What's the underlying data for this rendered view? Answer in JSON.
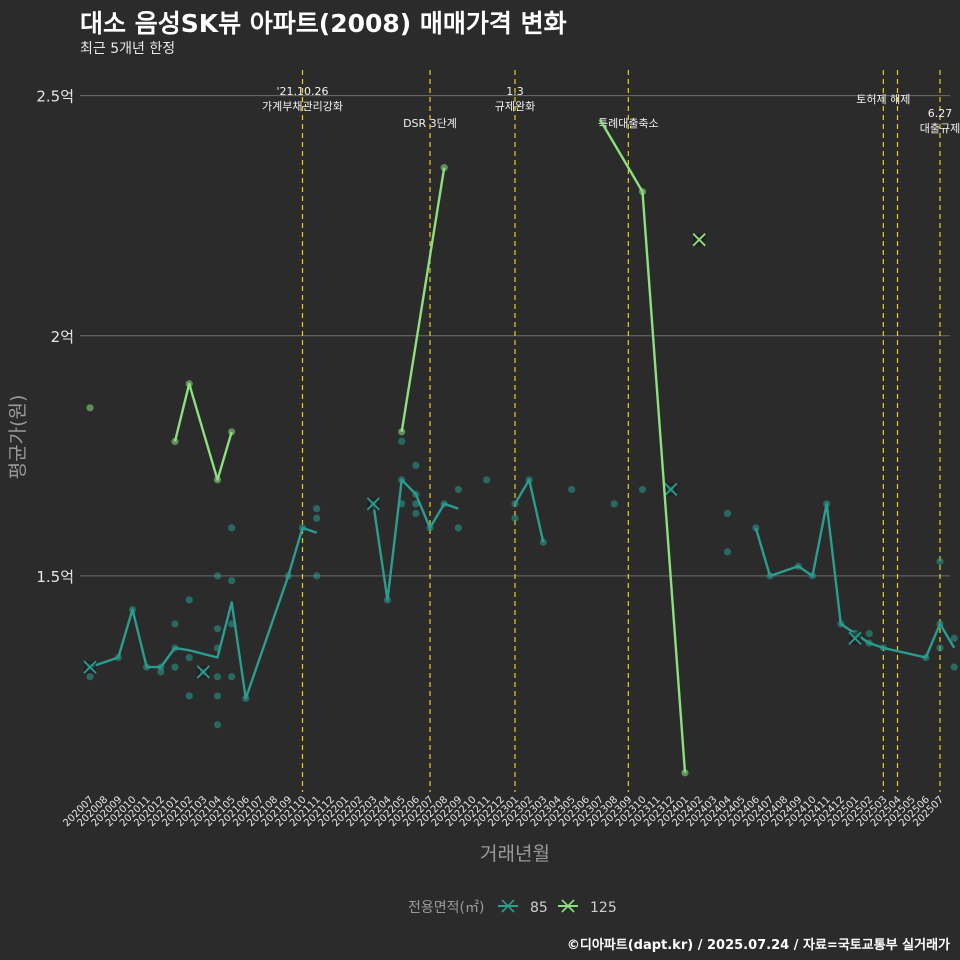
{
  "title": "대소 음성SK뷰 아파트(2008) 매매가격 변화",
  "subtitle": "최근 5개년 한정",
  "caption": "©디아파트(dapt.kr) / 2025.07.24 / 자료=국토교통부 실거래가",
  "colors": {
    "s85": "#2a9d8f",
    "s125": "#8de07e",
    "event": "#e6d019",
    "bg": "#2b2b2b",
    "grid": "#6e6e6e"
  },
  "chart_data": {
    "type": "line",
    "xlabel": "거래년월",
    "ylabel": "평균가(원)",
    "categories": [
      "202007",
      "202008",
      "202009",
      "202010",
      "202011",
      "202012",
      "202101",
      "202102",
      "202103",
      "202104",
      "202105",
      "202106",
      "202107",
      "202108",
      "202109",
      "202110",
      "202111",
      "202112",
      "202201",
      "202202",
      "202203",
      "202204",
      "202205",
      "202206",
      "202207",
      "202208",
      "202209",
      "202210",
      "202211",
      "202212",
      "202301",
      "202302",
      "202303",
      "202304",
      "202305",
      "202306",
      "202307",
      "202308",
      "202309",
      "202310",
      "202311",
      "202312",
      "202401",
      "202402",
      "202403",
      "202404",
      "202405",
      "202406",
      "202407",
      "202408",
      "202409",
      "202410",
      "202411",
      "202412",
      "202501",
      "202502",
      "202503",
      "202504",
      "202505",
      "202506",
      "202507"
    ],
    "yticks": [
      {
        "value": 1.5,
        "label": "1.5억"
      },
      {
        "value": 2.0,
        "label": "2억"
      },
      {
        "value": 2.5,
        "label": "2.5억"
      }
    ],
    "ylim": [
      1.05,
      2.57
    ],
    "legend": {
      "title": "전용면적(㎡)",
      "position": "bottom",
      "items": [
        "85",
        "125"
      ]
    },
    "series": [
      {
        "name": "85",
        "line": [
          [
            1,
            1.31
          ],
          [
            3,
            1.33
          ],
          [
            4,
            1.43
          ],
          [
            5,
            1.31
          ],
          [
            6,
            1.31
          ],
          [
            7,
            1.35
          ],
          [
            8,
            1.345
          ],
          [
            10,
            1.33
          ],
          [
            11,
            1.445
          ],
          [
            12,
            1.245
          ],
          [
            15,
            1.5
          ],
          [
            16,
            1.6
          ],
          [
            17,
            1.59
          ],
          [
            21,
            1.65
          ],
          [
            22,
            1.45
          ],
          [
            23,
            1.7
          ],
          [
            24,
            1.67
          ],
          [
            25,
            1.6
          ],
          [
            26,
            1.65
          ],
          [
            27,
            1.64
          ],
          [
            31,
            1.65
          ],
          [
            32,
            1.7
          ],
          [
            33,
            1.57
          ],
          [
            48,
            1.6
          ],
          [
            49,
            1.5
          ],
          [
            51,
            1.52
          ],
          [
            52,
            1.5
          ],
          [
            53,
            1.65
          ],
          [
            54,
            1.4
          ],
          [
            55,
            1.38
          ],
          [
            56,
            1.36
          ],
          [
            57,
            1.35
          ],
          [
            60,
            1.33
          ],
          [
            61,
            1.4
          ],
          [
            62,
            1.35
          ]
        ],
        "points": [
          [
            1,
            1.31
          ],
          [
            1,
            1.29
          ],
          [
            3,
            1.33
          ],
          [
            4,
            1.43
          ],
          [
            5,
            1.31
          ],
          [
            6,
            1.31
          ],
          [
            6,
            1.3
          ],
          [
            7,
            1.4
          ],
          [
            7,
            1.35
          ],
          [
            7,
            1.31
          ],
          [
            8,
            1.45
          ],
          [
            8,
            1.33
          ],
          [
            8,
            1.25
          ],
          [
            9,
            1.3
          ],
          [
            10,
            1.5
          ],
          [
            10,
            1.39
          ],
          [
            10,
            1.35
          ],
          [
            10,
            1.29
          ],
          [
            10,
            1.25
          ],
          [
            10,
            1.19
          ],
          [
            11,
            1.6
          ],
          [
            11,
            1.49
          ],
          [
            11,
            1.4
          ],
          [
            11,
            1.29
          ],
          [
            12,
            1.245
          ],
          [
            15,
            1.5
          ],
          [
            16,
            1.6
          ],
          [
            17,
            1.64
          ],
          [
            17,
            1.62
          ],
          [
            17,
            1.5
          ],
          [
            21,
            1.65
          ],
          [
            22,
            1.45
          ],
          [
            23,
            1.78
          ],
          [
            23,
            1.7
          ],
          [
            23,
            1.65
          ],
          [
            24,
            1.73
          ],
          [
            24,
            1.67
          ],
          [
            24,
            1.65
          ],
          [
            24,
            1.63
          ],
          [
            25,
            1.6
          ],
          [
            26,
            1.65
          ],
          [
            27,
            1.68
          ],
          [
            27,
            1.6
          ],
          [
            29,
            1.7
          ],
          [
            31,
            1.65
          ],
          [
            31,
            1.62
          ],
          [
            32,
            1.7
          ],
          [
            33,
            1.57
          ],
          [
            35,
            1.68
          ],
          [
            38,
            1.65
          ],
          [
            40,
            1.68
          ],
          [
            42,
            1.68
          ],
          [
            46,
            1.63
          ],
          [
            46,
            1.55
          ],
          [
            48,
            1.6
          ],
          [
            49,
            1.5
          ],
          [
            51,
            1.52
          ],
          [
            52,
            1.5
          ],
          [
            53,
            1.65
          ],
          [
            54,
            1.4
          ],
          [
            55,
            1.38
          ],
          [
            56,
            1.38
          ],
          [
            56,
            1.36
          ],
          [
            57,
            1.35
          ],
          [
            60,
            1.33
          ],
          [
            61,
            1.53
          ],
          [
            61,
            1.4
          ],
          [
            61,
            1.35
          ],
          [
            62,
            1.37
          ],
          [
            62,
            1.31
          ]
        ],
        "crosses": [
          [
            1,
            1.31
          ],
          [
            9,
            1.3
          ],
          [
            21,
            1.65
          ],
          [
            42,
            1.68
          ],
          [
            55,
            1.37
          ]
        ]
      },
      {
        "name": "125",
        "line": [
          [
            1,
            1.85
          ],
          [
            7,
            1.78
          ],
          [
            8,
            1.9
          ],
          [
            10,
            1.7
          ],
          [
            11,
            1.8
          ],
          [
            23,
            1.8
          ],
          [
            26,
            2.35
          ],
          [
            37,
            2.45
          ],
          [
            40,
            2.3
          ],
          [
            43,
            1.09
          ]
        ],
        "points": [
          [
            1,
            1.85
          ],
          [
            7,
            1.78
          ],
          [
            8,
            1.9
          ],
          [
            10,
            1.7
          ],
          [
            11,
            1.8
          ],
          [
            23,
            1.8
          ],
          [
            26,
            2.35
          ],
          [
            40,
            2.3
          ],
          [
            43,
            1.09
          ]
        ],
        "crosses": [
          [
            44,
            2.2
          ]
        ]
      }
    ],
    "events": [
      {
        "x": 16,
        "label": "'21.10.26\n가계부채관리강화",
        "row": "top"
      },
      {
        "x": 25,
        "label": "DSR 3단계",
        "row": "low"
      },
      {
        "x": 31,
        "label": "1.3\n규제완화",
        "row": "top"
      },
      {
        "x": 39,
        "label": "특례대출축소",
        "row": "low"
      },
      {
        "x": 57,
        "label": "토허제 해제",
        "row": "mid"
      },
      {
        "x": 58,
        "label": "",
        "row": "mid"
      },
      {
        "x": 61,
        "label": "6.27\n대출규제",
        "row": "right"
      }
    ]
  }
}
